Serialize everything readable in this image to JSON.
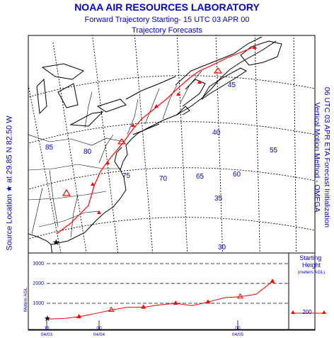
{
  "header": {
    "title": "NOAA AIR RESOURCES LABORATORY",
    "subtitle": "Forward Trajectory   Starting- 15 UTC 03 APR 00",
    "forecast": "Trajectory Forecasts"
  },
  "source_location": "Source Location ★ at   29.85 N   82.50 W",
  "model_info": {
    "line1": "06 UTC 03 APR    ETA  Forecast Initialization",
    "line2": "Vertical Motion Method - OMEGA"
  },
  "map": {
    "longitude_labels": [
      "85",
      "80",
      "75",
      "70",
      "65",
      "60",
      "55"
    ],
    "latitude_labels": [
      "45",
      "40",
      "35",
      "30"
    ],
    "trajectory_color": "#ff0000",
    "map_line_color": "#000000",
    "grid_color": "#000000"
  },
  "height_panel": {
    "y_axis_label": "Meters AGL",
    "y_ticks": [
      "3000",
      "2000",
      "1000"
    ],
    "x_ticks": [
      {
        "top": "15",
        "bottom": "04/03"
      },
      {
        "top": "00",
        "bottom": "04/04"
      },
      {
        "top": "00",
        "bottom": "04/05"
      }
    ],
    "starting_height_title": "Starting Height",
    "starting_height_units": "(meters AGL)",
    "starting_height_value": "200",
    "heights_m": [
      200,
      230,
      320,
      480,
      660,
      800,
      800,
      920,
      1000,
      880,
      1060,
      1280,
      1330,
      1460,
      2100
    ]
  }
}
